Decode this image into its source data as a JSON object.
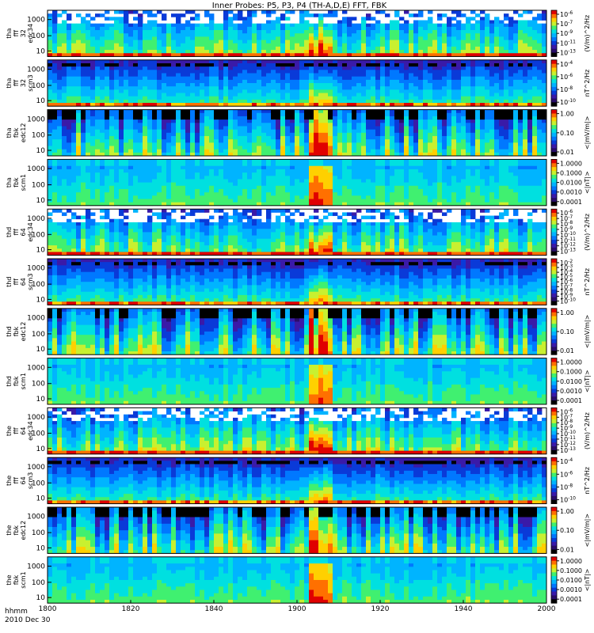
{
  "title": "Inner Probes: P5, P3, P4 (TH-A,D,E) FFT, FBK",
  "x_axis": {
    "name": "hhmm",
    "date": "2010 Dec 30",
    "ticks": [
      "1800",
      "1820",
      "1840",
      "1900",
      "1920",
      "1940",
      "2000"
    ]
  },
  "colors": {
    "colormap": [
      "#000000",
      "#2a0d6b",
      "#3a1aa8",
      "#0a3ad8",
      "#0078ff",
      "#00b4ff",
      "#00e0e0",
      "#40f070",
      "#c8f030",
      "#ffd000",
      "#ff7000",
      "#e00000"
    ]
  },
  "chart_data": {
    "type": "heatmap",
    "x_range": [
      "1800",
      "2000"
    ],
    "x_ticks": [
      "1800",
      "1820",
      "1840",
      "1900",
      "1920",
      "1940",
      "2000"
    ],
    "panels": [
      {
        "label_lines": [
          "tha",
          "fff",
          "32",
          "edc34"
        ],
        "kind": "fff_e",
        "y_ticks": [
          "1000",
          "100",
          "10"
        ],
        "cbar_ticks": [
          "10^-6",
          "10^-7",
          "10^-9",
          "10^-11",
          "10^-13"
        ],
        "cbar_label": "(V/m)^2/Hz"
      },
      {
        "label_lines": [
          "tha",
          "fff",
          "32",
          "scm3"
        ],
        "kind": "fff_b",
        "y_ticks": [
          "1000",
          "100",
          "10"
        ],
        "cbar_ticks": [
          "10^-4",
          "10^-6",
          "10^-8",
          "10^-10"
        ],
        "cbar_label": "nT^2/Hz"
      },
      {
        "label_lines": [
          "tha",
          "fbk",
          "edc12"
        ],
        "kind": "fbk_e",
        "y_ticks": [
          "1000",
          "100",
          "10"
        ],
        "cbar_ticks": [
          "1.00",
          "0.10",
          "0.01"
        ],
        "cbar_label": "<|mV/m|>"
      },
      {
        "label_lines": [
          "tha",
          "fbk",
          "scm1"
        ],
        "kind": "fbk_b",
        "y_ticks": [
          "1000",
          "100",
          "10"
        ],
        "cbar_ticks": [
          "1.0000",
          "0.1000",
          "0.0100",
          "0.0010",
          "0.0001"
        ],
        "cbar_label": "<|nT|>"
      },
      {
        "label_lines": [
          "thd",
          "fff",
          "64",
          "edc34"
        ],
        "kind": "fff_e",
        "y_ticks": [
          "1000",
          "100",
          "10"
        ],
        "cbar_ticks": [
          "10^-6",
          "10^-7",
          "10^-8",
          "10^-9",
          "10^-10",
          "10^-11",
          "10^-12",
          "10^-13"
        ],
        "cbar_label": "(V/m)^2/Hz"
      },
      {
        "label_lines": [
          "thd",
          "fff",
          "64",
          "scm3"
        ],
        "kind": "fff_b",
        "y_ticks": [
          "1000",
          "100",
          "10"
        ],
        "cbar_ticks": [
          "10^-2",
          "10^-3",
          "10^-4",
          "10^-5",
          "10^-6",
          "10^-7",
          "10^-8",
          "10^-9",
          "10^-10"
        ],
        "cbar_label": "nT^2/Hz"
      },
      {
        "label_lines": [
          "thd",
          "fbk",
          "edc12"
        ],
        "kind": "fbk_e",
        "y_ticks": [
          "1000",
          "100",
          "10"
        ],
        "cbar_ticks": [
          "1.00",
          "0.10",
          "0.01"
        ],
        "cbar_label": "<|mV/m|>"
      },
      {
        "label_lines": [
          "thd",
          "fbk",
          "scm1"
        ],
        "kind": "fbk_b",
        "y_ticks": [
          "1000",
          "100",
          "10"
        ],
        "cbar_ticks": [
          "1.0000",
          "0.1000",
          "0.0100",
          "0.0010",
          "0.0001"
        ],
        "cbar_label": "<|nT|>"
      },
      {
        "label_lines": [
          "the",
          "fff",
          "64",
          "edc34"
        ],
        "kind": "fff_e",
        "y_ticks": [
          "1000",
          "100",
          "10"
        ],
        "cbar_ticks": [
          "10^-6",
          "10^-7",
          "10^-8",
          "10^-9",
          "10^-10",
          "10^-11",
          "10^-12",
          "10^-13"
        ],
        "cbar_label": "(V/m)^2/Hz"
      },
      {
        "label_lines": [
          "the",
          "fff",
          "64",
          "scm3"
        ],
        "kind": "fff_b",
        "y_ticks": [
          "1000",
          "100",
          "10"
        ],
        "cbar_ticks": [
          "10^-4",
          "10^-6",
          "10^-8",
          "10^-10"
        ],
        "cbar_label": "nT^2/Hz"
      },
      {
        "label_lines": [
          "the",
          "fbk",
          "edc12"
        ],
        "kind": "fbk_e",
        "y_ticks": [
          "1000",
          "100",
          "10"
        ],
        "cbar_ticks": [
          "1.00",
          "0.10",
          "0.01"
        ],
        "cbar_label": "<|mV/m|>"
      },
      {
        "label_lines": [
          "the",
          "fbk",
          "scm1"
        ],
        "kind": "fbk_b",
        "y_ticks": [
          "1000",
          "100",
          "10"
        ],
        "cbar_ticks": [
          "1.0000",
          "0.1000",
          "0.0100",
          "0.0010",
          "0.0001"
        ],
        "cbar_label": "<|nT|>"
      }
    ]
  }
}
